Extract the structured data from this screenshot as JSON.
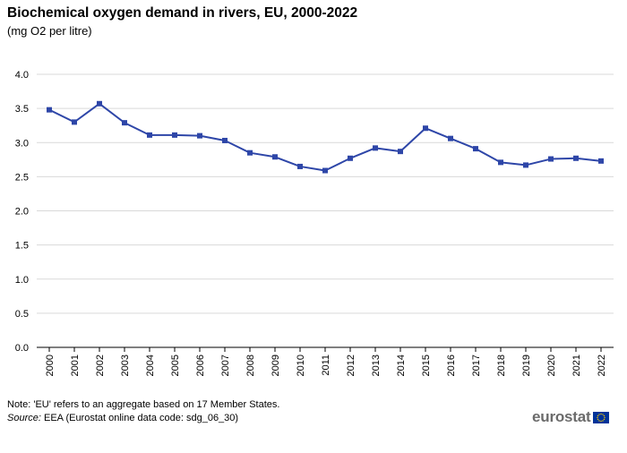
{
  "header": {
    "title": "Biochemical oxygen demand in rivers, EU, 2000-2022",
    "subtitle": "(mg  O2 per litre)"
  },
  "chart_data": {
    "type": "line",
    "title": "Biochemical oxygen demand in rivers, EU, 2000-2022",
    "subtitle": "(mg  O2 per litre)",
    "xlabel": "",
    "ylabel": "",
    "ylim": [
      0,
      4.0
    ],
    "y_ticks": [
      "0.0",
      "0.5",
      "1.0",
      "1.5",
      "2.0",
      "2.5",
      "3.0",
      "3.5",
      "4.0"
    ],
    "grid": true,
    "categories": [
      "2000",
      "2001",
      "2002",
      "2003",
      "2004",
      "2005",
      "2006",
      "2007",
      "2008",
      "2009",
      "2010",
      "2011",
      "2012",
      "2013",
      "2014",
      "2015",
      "2016",
      "2017",
      "2018",
      "2019",
      "2020",
      "2021",
      "2022"
    ],
    "series": [
      {
        "name": "EU",
        "color": "#2e46a8",
        "values": [
          3.48,
          3.3,
          3.57,
          3.29,
          3.11,
          3.11,
          3.1,
          3.03,
          2.85,
          2.79,
          2.65,
          2.59,
          2.77,
          2.92,
          2.87,
          3.21,
          3.06,
          2.91,
          2.71,
          2.67,
          2.76,
          2.77,
          2.73
        ]
      }
    ]
  },
  "footer": {
    "note": "Note: 'EU' refers to an aggregate based on 17 Member States.",
    "source_label": "Source:",
    "source_text": " EEA (Eurostat online data code: sdg_06_30)",
    "logo": "eurostat"
  },
  "colors": {
    "series": "#2e46a8",
    "grid": "#d9d9d9",
    "axis": "#000000",
    "logo_text": "#6b6b6b",
    "flag": "#003399",
    "flag_stars": "#ffcc00"
  }
}
